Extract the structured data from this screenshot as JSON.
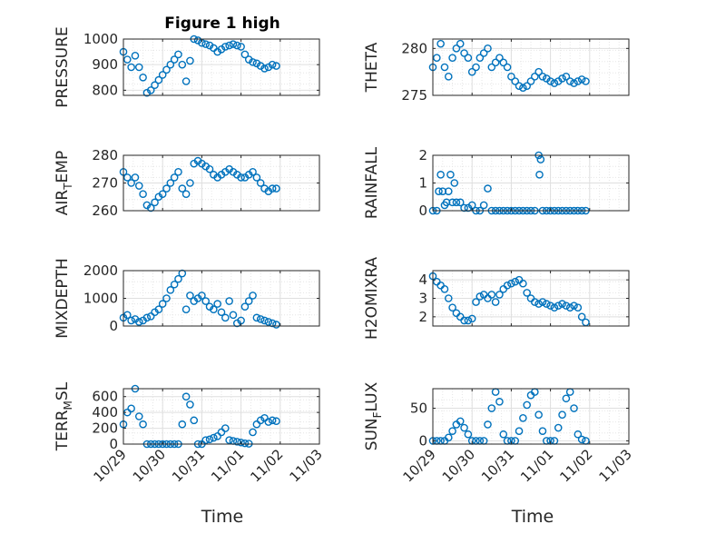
{
  "title": "Figure 1 high",
  "colors": {
    "marker": "#0072BD",
    "axis": "#262626",
    "grid": "#dfdfdf"
  },
  "chart_data": [
    {
      "type": "scatter",
      "ylabel": "PRESSURE",
      "ylim": [
        780,
        1000
      ],
      "yticks": [
        800,
        900,
        1000
      ],
      "ytick_labels": [
        "800",
        "900",
        "1000"
      ],
      "x": [
        0.0,
        0.1,
        0.2,
        0.3,
        0.4,
        0.5,
        0.6,
        0.7,
        0.8,
        0.9,
        1.0,
        1.1,
        1.2,
        1.3,
        1.4,
        1.5,
        1.6,
        1.7,
        1.8,
        1.9,
        2.0,
        2.1,
        2.2,
        2.3,
        2.4,
        2.5,
        2.6,
        2.7,
        2.8,
        2.9,
        3.0,
        3.1,
        3.2,
        3.3,
        3.4,
        3.5,
        3.6,
        3.7,
        3.8,
        3.9
      ],
      "y": [
        950,
        920,
        890,
        935,
        890,
        850,
        790,
        800,
        820,
        840,
        860,
        880,
        900,
        920,
        940,
        900,
        835,
        915,
        1000,
        995,
        985,
        980,
        975,
        965,
        950,
        960,
        970,
        975,
        980,
        975,
        970,
        940,
        920,
        910,
        905,
        895,
        885,
        890,
        900,
        895
      ]
    },
    {
      "type": "scatter",
      "ylabel": "THETA",
      "ylim": [
        275,
        281
      ],
      "yticks": [
        275,
        280
      ],
      "ytick_labels": [
        "275",
        "280"
      ],
      "x": [
        0.0,
        0.1,
        0.2,
        0.3,
        0.4,
        0.5,
        0.6,
        0.7,
        0.8,
        0.9,
        1.0,
        1.1,
        1.2,
        1.3,
        1.4,
        1.5,
        1.6,
        1.7,
        1.8,
        1.9,
        2.0,
        2.1,
        2.2,
        2.3,
        2.4,
        2.5,
        2.6,
        2.7,
        2.8,
        2.9,
        3.0,
        3.1,
        3.2,
        3.3,
        3.4,
        3.5,
        3.6,
        3.7,
        3.8,
        3.9
      ],
      "y": [
        278,
        279,
        280.5,
        278,
        277,
        279,
        280,
        280.5,
        279.5,
        279,
        277.5,
        278,
        279,
        279.5,
        280,
        278,
        278.5,
        279,
        278.5,
        278,
        277,
        276.5,
        276,
        275.8,
        276,
        276.5,
        277,
        277.5,
        277,
        276.8,
        276.5,
        276.3,
        276.5,
        276.8,
        277,
        276.5,
        276.3,
        276.5,
        276.7,
        276.5
      ]
    },
    {
      "type": "scatter",
      "ylabel": "AIR_TEMP",
      "ylim": [
        260,
        280
      ],
      "yticks": [
        260,
        270,
        280
      ],
      "ytick_labels": [
        "260",
        "270",
        "280"
      ],
      "x": [
        0.0,
        0.1,
        0.2,
        0.3,
        0.4,
        0.5,
        0.6,
        0.7,
        0.8,
        0.9,
        1.0,
        1.1,
        1.2,
        1.3,
        1.4,
        1.5,
        1.6,
        1.7,
        1.8,
        1.9,
        2.0,
        2.1,
        2.2,
        2.3,
        2.4,
        2.5,
        2.6,
        2.7,
        2.8,
        2.9,
        3.0,
        3.1,
        3.2,
        3.3,
        3.4,
        3.5,
        3.6,
        3.7,
        3.8,
        3.9
      ],
      "y": [
        274,
        272,
        270,
        272,
        269,
        266,
        262,
        261,
        263,
        265,
        266,
        268,
        270,
        272,
        274,
        268,
        266,
        270,
        277,
        278,
        277,
        276,
        275,
        273,
        272,
        273,
        274,
        275,
        274,
        273,
        272,
        272,
        273,
        274,
        272,
        270,
        268,
        267,
        268,
        268
      ]
    },
    {
      "type": "scatter",
      "ylabel": "RAINFALL",
      "ylim": [
        0,
        2
      ],
      "yticks": [
        0,
        1,
        2
      ],
      "ytick_labels": [
        "0",
        "1",
        "2"
      ],
      "x": [
        0.0,
        0.1,
        0.15,
        0.2,
        0.25,
        0.3,
        0.35,
        0.4,
        0.45,
        0.5,
        0.55,
        0.6,
        0.7,
        0.8,
        0.9,
        1.0,
        1.1,
        1.2,
        1.3,
        1.4,
        1.5,
        1.6,
        1.7,
        1.8,
        1.9,
        2.0,
        2.1,
        2.2,
        2.3,
        2.4,
        2.5,
        2.6,
        2.7,
        2.72,
        2.75,
        2.8,
        2.9,
        3.0,
        3.1,
        3.2,
        3.3,
        3.4,
        3.5,
        3.6,
        3.7,
        3.8,
        3.9
      ],
      "y": [
        0,
        0,
        0.7,
        1.3,
        0.7,
        0.2,
        0.3,
        0.7,
        1.3,
        0.3,
        1.0,
        0.3,
        0.3,
        0.1,
        0.1,
        0.2,
        0,
        0,
        0.2,
        0.8,
        0,
        0,
        0,
        0,
        0,
        0,
        0,
        0,
        0,
        0,
        0,
        0,
        2.0,
        1.3,
        1.85,
        0,
        0,
        0,
        0,
        0,
        0,
        0,
        0,
        0,
        0,
        0,
        0
      ]
    },
    {
      "type": "scatter",
      "ylabel": "MIXDEPTH",
      "ylim": [
        0,
        2000
      ],
      "yticks": [
        0,
        1000,
        2000
      ],
      "ytick_labels": [
        "0",
        "1000",
        "2000"
      ],
      "x": [
        0.0,
        0.1,
        0.2,
        0.3,
        0.4,
        0.5,
        0.6,
        0.7,
        0.8,
        0.9,
        1.0,
        1.1,
        1.2,
        1.3,
        1.4,
        1.5,
        1.6,
        1.7,
        1.8,
        1.9,
        2.0,
        2.1,
        2.2,
        2.3,
        2.4,
        2.5,
        2.6,
        2.7,
        2.8,
        2.9,
        3.0,
        3.1,
        3.2,
        3.3,
        3.4,
        3.5,
        3.6,
        3.7,
        3.8,
        3.9
      ],
      "y": [
        300,
        400,
        200,
        250,
        150,
        200,
        300,
        350,
        500,
        600,
        800,
        1000,
        1300,
        1500,
        1700,
        1900,
        600,
        1100,
        900,
        1000,
        1100,
        900,
        700,
        600,
        800,
        500,
        300,
        900,
        400,
        100,
        200,
        700,
        900,
        1100,
        300,
        250,
        200,
        150,
        100,
        50
      ]
    },
    {
      "type": "scatter",
      "ylabel": "H2OMIXRA",
      "ylim": [
        1.5,
        4.5
      ],
      "yticks": [
        2,
        3,
        4
      ],
      "ytick_labels": [
        "2",
        "3",
        "4"
      ],
      "x": [
        0.0,
        0.1,
        0.2,
        0.3,
        0.4,
        0.5,
        0.6,
        0.7,
        0.8,
        0.9,
        1.0,
        1.1,
        1.2,
        1.3,
        1.4,
        1.5,
        1.6,
        1.7,
        1.8,
        1.9,
        2.0,
        2.1,
        2.2,
        2.3,
        2.4,
        2.5,
        2.6,
        2.7,
        2.8,
        2.9,
        3.0,
        3.1,
        3.2,
        3.3,
        3.4,
        3.5,
        3.6,
        3.7,
        3.8,
        3.9
      ],
      "y": [
        4.2,
        3.9,
        3.7,
        3.5,
        3.0,
        2.5,
        2.2,
        2.0,
        1.8,
        1.8,
        1.9,
        2.8,
        3.1,
        3.2,
        3.0,
        3.2,
        2.8,
        3.2,
        3.5,
        3.7,
        3.8,
        3.9,
        4.0,
        3.8,
        3.3,
        3.0,
        2.8,
        2.7,
        2.8,
        2.7,
        2.6,
        2.5,
        2.6,
        2.7,
        2.6,
        2.5,
        2.6,
        2.5,
        2.0,
        1.7
      ]
    },
    {
      "type": "scatter",
      "ylabel": "TERR_MSL",
      "ylim": [
        0,
        700
      ],
      "yticks": [
        0,
        200,
        400,
        600
      ],
      "ytick_labels": [
        "0",
        "200",
        "400",
        "600"
      ],
      "x": [
        0.0,
        0.1,
        0.2,
        0.3,
        0.4,
        0.5,
        0.6,
        0.7,
        0.8,
        0.9,
        1.0,
        1.1,
        1.2,
        1.3,
        1.4,
        1.5,
        1.6,
        1.7,
        1.8,
        1.9,
        2.0,
        2.1,
        2.2,
        2.3,
        2.4,
        2.5,
        2.6,
        2.7,
        2.8,
        2.9,
        3.0,
        3.1,
        3.2,
        3.3,
        3.4,
        3.5,
        3.6,
        3.7,
        3.8,
        3.9
      ],
      "y": [
        250,
        400,
        450,
        700,
        350,
        250,
        0,
        0,
        0,
        0,
        0,
        0,
        0,
        0,
        0,
        250,
        600,
        500,
        300,
        0,
        0,
        50,
        60,
        80,
        100,
        150,
        200,
        50,
        40,
        30,
        20,
        10,
        5,
        150,
        250,
        300,
        330,
        280,
        300,
        290
      ]
    },
    {
      "type": "scatter",
      "ylabel": "SUN_FLUX",
      "ylim": [
        -5,
        80
      ],
      "yticks": [
        0,
        50
      ],
      "ytick_labels": [
        "0",
        "50"
      ],
      "x": [
        0.0,
        0.1,
        0.2,
        0.3,
        0.4,
        0.5,
        0.6,
        0.7,
        0.8,
        0.9,
        1.0,
        1.1,
        1.2,
        1.3,
        1.4,
        1.5,
        1.6,
        1.7,
        1.8,
        1.9,
        2.0,
        2.1,
        2.2,
        2.3,
        2.4,
        2.5,
        2.6,
        2.7,
        2.8,
        2.9,
        3.0,
        3.1,
        3.2,
        3.3,
        3.4,
        3.5,
        3.6,
        3.7,
        3.8,
        3.9
      ],
      "y": [
        0,
        0,
        0,
        0,
        5,
        15,
        25,
        30,
        20,
        10,
        0,
        0,
        0,
        0,
        25,
        50,
        75,
        60,
        10,
        0,
        0,
        0,
        15,
        35,
        55,
        70,
        75,
        40,
        15,
        0,
        0,
        0,
        20,
        40,
        65,
        75,
        50,
        10,
        2,
        0
      ]
    }
  ],
  "xaxis": {
    "label": "Time",
    "ticks": [
      0,
      1,
      2,
      3,
      4,
      5
    ],
    "tick_labels": [
      "10/29",
      "10/30",
      "10/31",
      "11/01",
      "11/02",
      "11/03"
    ],
    "xlim": [
      0,
      5
    ]
  }
}
